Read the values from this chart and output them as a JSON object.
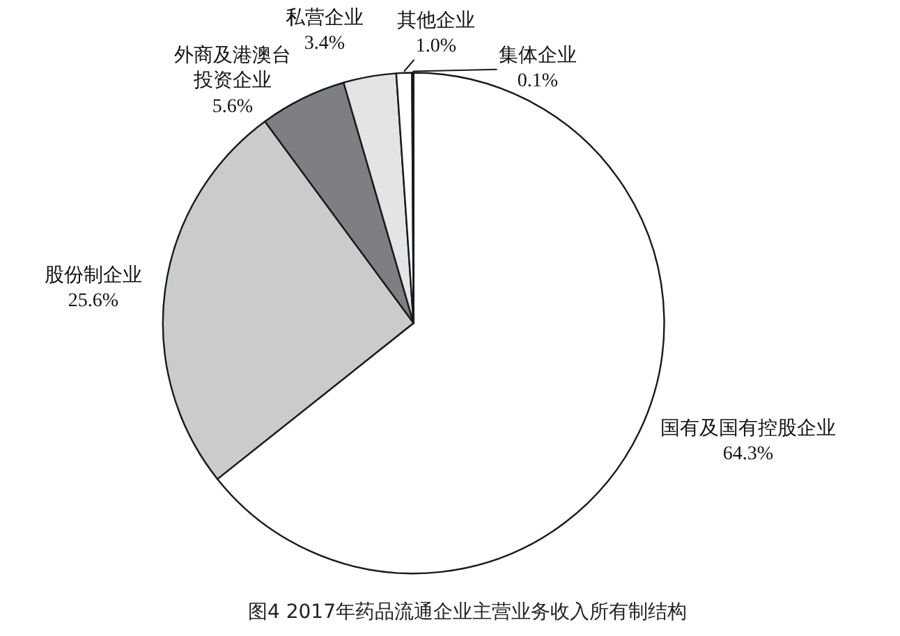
{
  "chart_data": {
    "type": "pie",
    "categories": [
      "国有及国有控股企业",
      "股份制企业",
      "外商及港澳台投资企业",
      "私营企业",
      "其他企业",
      "集体企业"
    ],
    "values": [
      64.3,
      25.6,
      5.6,
      3.4,
      1.0,
      0.1
    ],
    "value_labels": [
      "64.3%",
      "25.6%",
      "5.6%",
      "3.4%",
      "1.0%",
      "0.1%"
    ],
    "colors": [
      "#ffffff",
      "#c9cbcd",
      "#7d7f82",
      "#e3e4e5",
      "#ffffff",
      "#6a6a6a"
    ],
    "annotations": [
      "图4 2017年药品流通企业主营业务收入所有制结构"
    ]
  }
}
